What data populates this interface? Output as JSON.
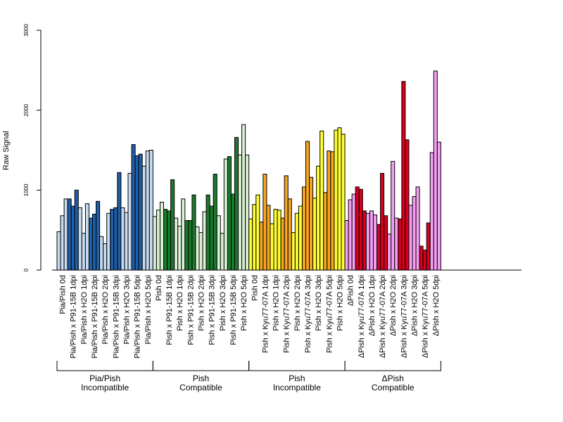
{
  "chart_data": {
    "type": "bar",
    "ylabel": "Raw Signal",
    "ylim": [
      0,
      3000
    ],
    "yticks": [
      0,
      1000,
      2000,
      3000
    ],
    "colors": {
      "lightblue": "#c6dbef",
      "blue": "#1f5fa8",
      "lightgreen": "#d9f0d3",
      "green": "#1b7a2e",
      "yellow": "#ffff33",
      "orange": "#f5a623",
      "pink": "#f49ef2",
      "red": "#d7001f"
    },
    "categories": [
      {
        "label": "Pia/Pish 0d",
        "color": "lightblue",
        "values": [
          480,
          680,
          890
        ]
      },
      {
        "label": "Pia/Pish x P91-15B 1dpi",
        "color": "blue",
        "values": [
          890,
          800,
          1000
        ]
      },
      {
        "label": "Pia/Pish x H2O 1dpi",
        "color": "lightblue",
        "values": [
          780,
          460,
          830
        ]
      },
      {
        "label": "Pia/Pish x P91-15B 2dpi",
        "color": "blue",
        "values": [
          650,
          700,
          860
        ]
      },
      {
        "label": "Pia/Pish x H2O 2dpi",
        "color": "lightblue",
        "values": [
          420,
          330,
          710
        ]
      },
      {
        "label": "Pia/Pish x P91-15B 3dpi",
        "color": "blue",
        "values": [
          760,
          780,
          1220
        ]
      },
      {
        "label": "Pia/Pish x H2O 3dpi",
        "color": "lightblue",
        "values": [
          780,
          720,
          1210
        ]
      },
      {
        "label": "Pia/Pish x P91-15B 5dpi",
        "color": "blue",
        "values": [
          1570,
          1430,
          1450
        ]
      },
      {
        "label": "Pia/Pish x H2O 5dpi",
        "color": "lightblue",
        "values": [
          1300,
          1490,
          1500
        ]
      },
      {
        "label": "Pish 0d",
        "color": "lightgreen",
        "values": [
          670,
          750,
          850
        ]
      },
      {
        "label": "Pish x P91-15B 1dpi",
        "color": "green",
        "values": [
          760,
          740,
          1130
        ]
      },
      {
        "label": "Pish x H2O 1dpi",
        "color": "lightgreen",
        "values": [
          650,
          550,
          890
        ]
      },
      {
        "label": "Pish x P91-15B 2dpi",
        "color": "green",
        "values": [
          620,
          620,
          940
        ]
      },
      {
        "label": "Pish x H2O 2dpi",
        "color": "lightgreen",
        "values": [
          540,
          470,
          730
        ]
      },
      {
        "label": "Pish x P91-15B 3dpi",
        "color": "green",
        "values": [
          940,
          800,
          1200
        ]
      },
      {
        "label": "Pish x H2O 3dpi",
        "color": "lightgreen",
        "values": [
          680,
          460,
          1390
        ]
      },
      {
        "label": "Pish x P91-15B 5dpi",
        "color": "green",
        "values": [
          1420,
          950,
          1660
        ]
      },
      {
        "label": "Pish x H2O 5dpi",
        "color": "lightgreen",
        "values": [
          1440,
          1820,
          1440
        ]
      },
      {
        "label": "Pish 0d",
        "color": "yellow",
        "values": [
          640,
          820,
          940
        ]
      },
      {
        "label": "Pish x Kyu77-07A 1dpi",
        "color": "orange",
        "values": [
          600,
          1200,
          810
        ]
      },
      {
        "label": "Pish x H2O 1dpi",
        "color": "yellow",
        "values": [
          580,
          760,
          750
        ]
      },
      {
        "label": "Pish x Kyu77-07A 2dpi",
        "color": "orange",
        "values": [
          650,
          1180,
          890
        ]
      },
      {
        "label": "Pish x H2O 2dpi",
        "color": "yellow",
        "values": [
          470,
          710,
          800
        ]
      },
      {
        "label": "Pish x Kyu77-07A 3dpi",
        "color": "orange",
        "values": [
          1040,
          1610,
          1160
        ]
      },
      {
        "label": "Pish x H2O 3dpi",
        "color": "yellow",
        "values": [
          900,
          1300,
          1740
        ]
      },
      {
        "label": "Pish x Kyu77-07A 5dpi",
        "color": "orange",
        "values": [
          970,
          1490,
          1480
        ]
      },
      {
        "label": "Pish x H2O 5dpi",
        "color": "yellow",
        "values": [
          1750,
          1780,
          1700
        ]
      },
      {
        "label": "ΔPish 0d",
        "color": "pink",
        "values": [
          620,
          880,
          950
        ]
      },
      {
        "label": "ΔPish x Kyu77-07A 1dpi",
        "color": "red",
        "values": [
          1040,
          1010,
          740
        ]
      },
      {
        "label": "ΔPish x H2O 1dpi",
        "color": "pink",
        "values": [
          710,
          740,
          690
        ]
      },
      {
        "label": "ΔPish x Kyu77-07A 2dpi",
        "color": "red",
        "values": [
          570,
          1210,
          680
        ]
      },
      {
        "label": "ΔPish x H2O 2dpi",
        "color": "pink",
        "values": [
          450,
          1360,
          650
        ]
      },
      {
        "label": "ΔPish x Kyu77-07A 3dpi",
        "color": "red",
        "values": [
          640,
          2360,
          1630
        ]
      },
      {
        "label": "ΔPish x H2O 3dpi",
        "color": "pink",
        "values": [
          810,
          920,
          1040
        ]
      },
      {
        "label": "ΔPish x Kyu77-07A 5dpi",
        "color": "red",
        "values": [
          300,
          250,
          590
        ]
      },
      {
        "label": "ΔPish x H2O 5dpi",
        "color": "pink",
        "values": [
          1470,
          2490,
          1600
        ]
      }
    ],
    "groups": [
      {
        "line1": "Pia/Pish",
        "line2": "Incompatible",
        "count": 9
      },
      {
        "line1": "Pish",
        "line2": "Compatible",
        "count": 9
      },
      {
        "line1": "Pish",
        "line2": "Incompatible",
        "count": 9
      },
      {
        "line1": "ΔPish",
        "line2": "Compatible",
        "count": 9
      }
    ]
  }
}
